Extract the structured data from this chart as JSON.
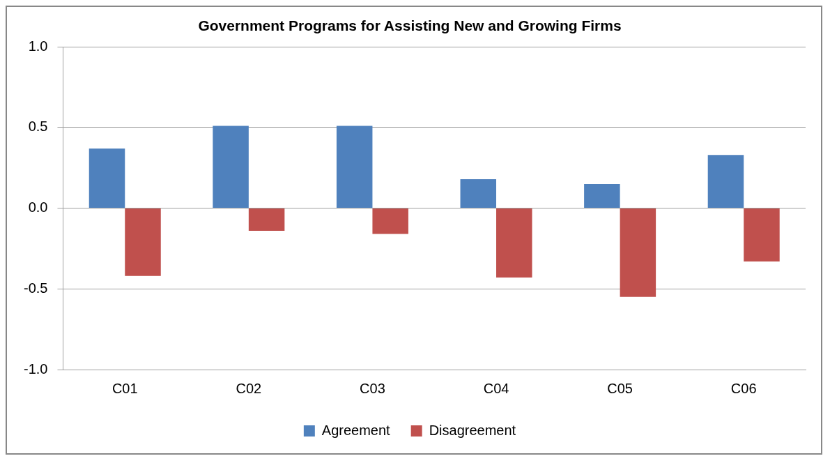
{
  "chart_data": {
    "type": "bar",
    "title": "Government Programs for Assisting New and Growing Firms",
    "categories": [
      "C01",
      "C02",
      "C03",
      "C04",
      "C05",
      "C06"
    ],
    "series": [
      {
        "name": "Agreement",
        "color": "#4f81bd",
        "values": [
          0.37,
          0.51,
          0.51,
          0.18,
          0.15,
          0.33
        ]
      },
      {
        "name": "Disagreement",
        "color": "#c0504d",
        "values": [
          -0.42,
          -0.14,
          -0.16,
          -0.43,
          -0.55,
          -0.33
        ]
      }
    ],
    "ylim": [
      -1,
      1
    ],
    "yticks": [
      {
        "value": -1,
        "label": "-1.0"
      },
      {
        "value": -0.5,
        "label": "-0.5"
      },
      {
        "value": 0,
        "label": "0.0"
      },
      {
        "value": 0.5,
        "label": "0.5"
      },
      {
        "value": 1,
        "label": "1.0"
      }
    ],
    "grid": "y",
    "legend": "bottom"
  }
}
